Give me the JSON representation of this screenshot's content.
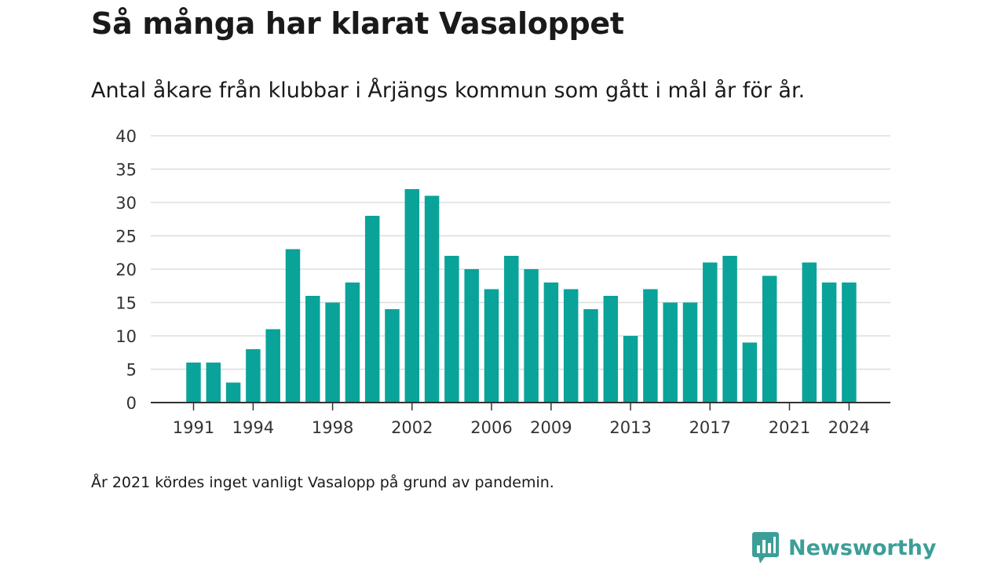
{
  "title": "Så många har klarat Vasaloppet",
  "subtitle": "Antal åkare från klubbar i Årjängs kommun som gått i mål år för år.",
  "note": "År 2021 kördes inget vanligt Vasalopp på grund av pandemin.",
  "brand": {
    "name": "Newsworthy",
    "icon": "newsworthy-logo-icon"
  },
  "colors": {
    "bar": "#0aa39a",
    "grid": "#dddddd",
    "axis": "#333333",
    "brand": "#3d9e98"
  },
  "chart_data": {
    "type": "bar",
    "categories": [
      1991,
      1992,
      1993,
      1994,
      1995,
      1996,
      1997,
      1998,
      1999,
      2000,
      2001,
      2002,
      2003,
      2004,
      2005,
      2006,
      2007,
      2008,
      2009,
      2010,
      2011,
      2012,
      2013,
      2014,
      2015,
      2016,
      2017,
      2018,
      2019,
      2020,
      2021,
      2022,
      2023,
      2024
    ],
    "values": [
      6,
      6,
      3,
      8,
      11,
      23,
      16,
      15,
      18,
      28,
      14,
      32,
      31,
      22,
      20,
      17,
      22,
      20,
      18,
      17,
      14,
      16,
      10,
      17,
      15,
      15,
      21,
      22,
      9,
      19,
      0,
      21,
      18,
      18
    ],
    "x_tick_labels": [
      "1991",
      "1994",
      "1998",
      "2002",
      "2006",
      "2009",
      "2013",
      "2017",
      "2021",
      "2024"
    ],
    "y_ticks": [
      0,
      5,
      10,
      15,
      20,
      25,
      30,
      35,
      40
    ],
    "ylim": [
      0,
      40
    ],
    "grid": true
  }
}
